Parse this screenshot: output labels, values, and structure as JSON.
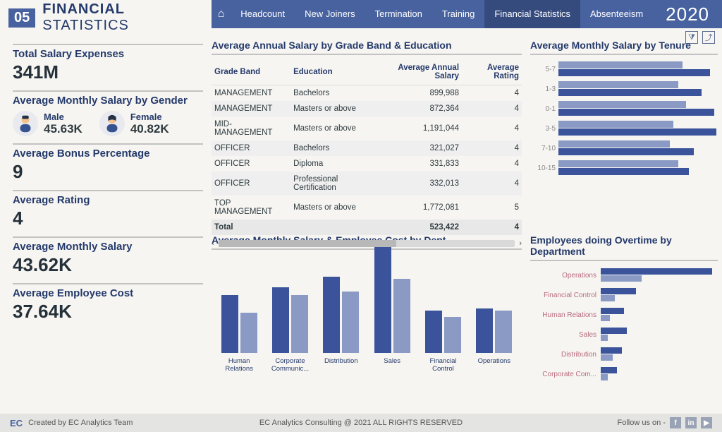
{
  "colors": {
    "nav_bg": "#47629f",
    "nav_active": "#354b7e",
    "accent_dark": "#3a539b",
    "accent_light": "#8a9ac4",
    "title_color": "#253a6b",
    "page_bg": "#f6f5f2",
    "divider": "#c3c3c3",
    "footer_bg": "#e4e4e2",
    "ot_label": "#b96b7b"
  },
  "header": {
    "page_number": "05",
    "title_bold": "FINANCIAL",
    "title_light": "STATISTICS",
    "year": "2020"
  },
  "nav": {
    "items": [
      {
        "label": "Headcount",
        "active": false
      },
      {
        "label": "New Joiners",
        "active": false
      },
      {
        "label": "Termination",
        "active": false
      },
      {
        "label": "Training",
        "active": false
      },
      {
        "label": "Financial Statistics",
        "active": true
      },
      {
        "label": "Absenteeism",
        "active": false
      }
    ],
    "home_icon": "home-icon"
  },
  "toolbar": {
    "filter_icon": "filter-icon",
    "export_icon": "export-icon"
  },
  "kpis": {
    "total_salary": {
      "label": "Total Salary Expenses",
      "value": "341M"
    },
    "salary_gender": {
      "label": "Average Monthly Salary by Gender",
      "male": {
        "label": "Male",
        "value": "45.63K"
      },
      "female": {
        "label": "Female",
        "value": "40.82K"
      }
    },
    "bonus": {
      "label": "Average Bonus Percentage",
      "value": "9"
    },
    "rating": {
      "label": "Average Rating",
      "value": "4"
    },
    "avg_monthly": {
      "label": "Average Monthly Salary",
      "value": "43.62K"
    },
    "avg_emp_cost": {
      "label": "Average Employee Cost",
      "value": "37.64K"
    }
  },
  "table": {
    "title": "Average Annual Salary by Grade Band & Education",
    "columns": [
      "Grade Band",
      "Education",
      "Average Annual Salary",
      "Average Rating"
    ],
    "rows": [
      [
        "MANAGEMENT",
        "Bachelors",
        "899,988",
        "4"
      ],
      [
        "MANAGEMENT",
        "Masters or above",
        "872,364",
        "4"
      ],
      [
        "MID-MANAGEMENT",
        "Masters or above",
        "1,191,044",
        "4"
      ],
      [
        "OFFICER",
        "Bachelors",
        "321,027",
        "4"
      ],
      [
        "OFFICER",
        "Diploma",
        "331,833",
        "4"
      ],
      [
        "OFFICER",
        "Professional Certification",
        "332,013",
        "4"
      ],
      [
        "TOP MANAGEMENT",
        "Masters or above",
        "1,772,081",
        "5"
      ]
    ],
    "total_label": "Total",
    "total_values": [
      "",
      "523,422",
      "4"
    ]
  },
  "tenure_chart": {
    "title": "Average Monthly Salary by Tenure",
    "type": "bar-horizontal-grouped",
    "max": 100,
    "rows": [
      {
        "label": "5-7",
        "a": 78,
        "b": 95
      },
      {
        "label": "1-3",
        "a": 75,
        "b": 90
      },
      {
        "label": "0-1",
        "a": 80,
        "b": 98
      },
      {
        "label": "3-5",
        "a": 72,
        "b": 99
      },
      {
        "label": "7-10",
        "a": 70,
        "b": 85
      },
      {
        "label": "10-15",
        "a": 75,
        "b": 82
      }
    ]
  },
  "dept_chart": {
    "title": "Average Monthly Salary & Employee Cost by Dept",
    "type": "bar-vertical-grouped",
    "max": 100,
    "groups": [
      {
        "label": "Human Relations",
        "a": 55,
        "b": 38
      },
      {
        "label": "Corporate Communic...",
        "a": 62,
        "b": 55
      },
      {
        "label": "Distribution",
        "a": 72,
        "b": 58
      },
      {
        "label": "Sales",
        "a": 100,
        "b": 70
      },
      {
        "label": "Financial Control",
        "a": 40,
        "b": 34
      },
      {
        "label": "Operations",
        "a": 42,
        "b": 40
      }
    ]
  },
  "overtime_chart": {
    "title": "Employees doing Overtime by Department",
    "type": "bar-horizontal-grouped",
    "max": 100,
    "rows": [
      {
        "label": "Operations",
        "a": 95,
        "b": 35
      },
      {
        "label": "Financial Control",
        "a": 30,
        "b": 12
      },
      {
        "label": "Human Relations",
        "a": 20,
        "b": 8
      },
      {
        "label": "Sales",
        "a": 22,
        "b": 6
      },
      {
        "label": "Distribution",
        "a": 18,
        "b": 10
      },
      {
        "label": "Corporate Com...",
        "a": 14,
        "b": 6
      }
    ]
  },
  "footer": {
    "logo": "EC",
    "created_by": "Created by EC Analytics Team",
    "copyright": "EC Analytics Consulting @ 2021 ALL RIGHTS RESERVED",
    "follow": "Follow us on -",
    "socials": [
      "f",
      "in",
      "▶"
    ]
  }
}
